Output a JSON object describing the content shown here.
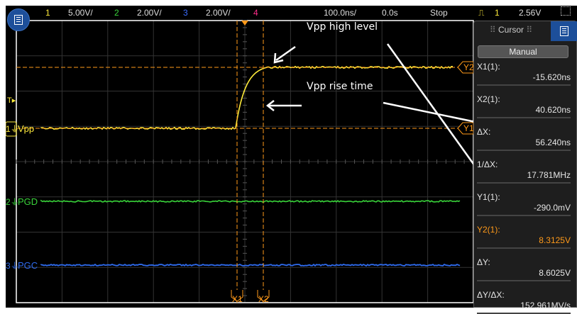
{
  "topbar": {
    "ch1_num": "1",
    "ch1_scale": "5.00V/",
    "ch2_num": "2",
    "ch2_scale": "2.00V/",
    "ch3_num": "3",
    "ch3_scale": "2.00V/",
    "ch4_num": "4",
    "timebase": "100.0ns/",
    "delay": "0.0s",
    "run_state": "Stop",
    "trigger_source": "1",
    "trigger_level": "2.56V"
  },
  "channels": [
    {
      "num": "1",
      "label": "Vpp",
      "color": "#ffeb3b"
    },
    {
      "num": "2",
      "label": "PGD",
      "color": "#39d43a"
    },
    {
      "num": "3",
      "label": "PGC",
      "color": "#2f6cf0"
    }
  ],
  "trigger_marker": "T",
  "cursors": {
    "x1": "X1",
    "x2": "X2",
    "y1": "Y1",
    "y2": "Y2",
    "color": "#ff9a1a"
  },
  "panel": {
    "title": "Cursor",
    "mode": "Manual",
    "rows": [
      {
        "label": "X1(1):",
        "value": "-15.620ns"
      },
      {
        "label": "X2(1):",
        "value": "40.620ns"
      },
      {
        "label": "ΔX:",
        "value": "56.240ns"
      },
      {
        "label": "1/ΔX:",
        "value": "17.781MHz"
      },
      {
        "label": "Y1(1):",
        "value": "-290.0mV"
      },
      {
        "label": "Y2(1):",
        "value": "8.3125V"
      },
      {
        "label": "ΔY:",
        "value": "8.6025V"
      },
      {
        "label": "ΔY/ΔX:",
        "value": "152.961MV/s"
      }
    ]
  },
  "annotations": {
    "high": "Vpp high level",
    "rise": "Vpp rise time"
  }
}
